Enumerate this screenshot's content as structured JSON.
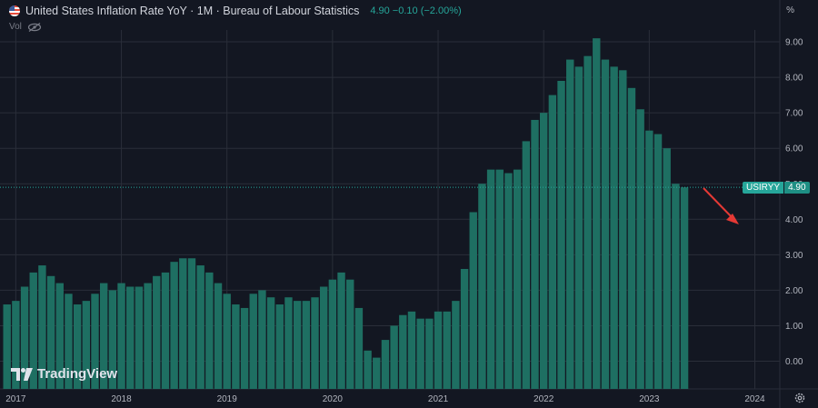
{
  "header": {
    "title": "United States Inflation Rate YoY · 1M · Bureau of Labour Statistics",
    "value_text": "4.90 −0.10 (−2.00%)",
    "vol_label": "Vol"
  },
  "axis": {
    "unit_label": "%",
    "y_ticks": [
      "9.00",
      "8.00",
      "7.00",
      "6.00",
      "5.00",
      "4.00",
      "3.00",
      "2.00",
      "1.00",
      "0.00"
    ],
    "x_ticks": [
      "2017",
      "2018",
      "2019",
      "2020",
      "2021",
      "2022",
      "2023",
      "2024"
    ]
  },
  "price_badge": {
    "symbol": "USIRYY",
    "value": "4.90"
  },
  "logo_text": "TradingView",
  "colors": {
    "background": "#131722",
    "bar": "#1e6f62",
    "bar_highlight": "#26a69a",
    "grid": "#2a2e39",
    "arrow": "#e53935"
  },
  "chart_data": {
    "type": "bar",
    "title": "United States Inflation Rate YoY",
    "ylabel": "%",
    "ylim": [
      -0.7,
      9.0
    ],
    "x_start": "2016-12",
    "frequency": "monthly",
    "grid": true,
    "values": [
      1.6,
      1.7,
      2.1,
      2.5,
      2.7,
      2.4,
      2.2,
      1.9,
      1.6,
      1.7,
      1.9,
      2.2,
      2.0,
      2.2,
      2.1,
      2.1,
      2.2,
      2.4,
      2.5,
      2.8,
      2.9,
      2.9,
      2.7,
      2.5,
      2.2,
      1.9,
      1.6,
      1.5,
      1.9,
      2.0,
      1.8,
      1.6,
      1.8,
      1.7,
      1.7,
      1.8,
      2.1,
      2.3,
      2.5,
      2.3,
      1.5,
      0.3,
      0.1,
      0.6,
      1.0,
      1.3,
      1.4,
      1.2,
      1.2,
      1.4,
      1.4,
      1.7,
      2.6,
      4.2,
      5.0,
      5.4,
      5.4,
      5.3,
      5.4,
      6.2,
      6.8,
      7.0,
      7.5,
      7.9,
      8.5,
      8.3,
      8.6,
      9.1,
      8.5,
      8.3,
      8.2,
      7.7,
      7.1,
      6.5,
      6.4,
      6.0,
      5.0,
      4.9
    ],
    "last_value": 4.9
  }
}
